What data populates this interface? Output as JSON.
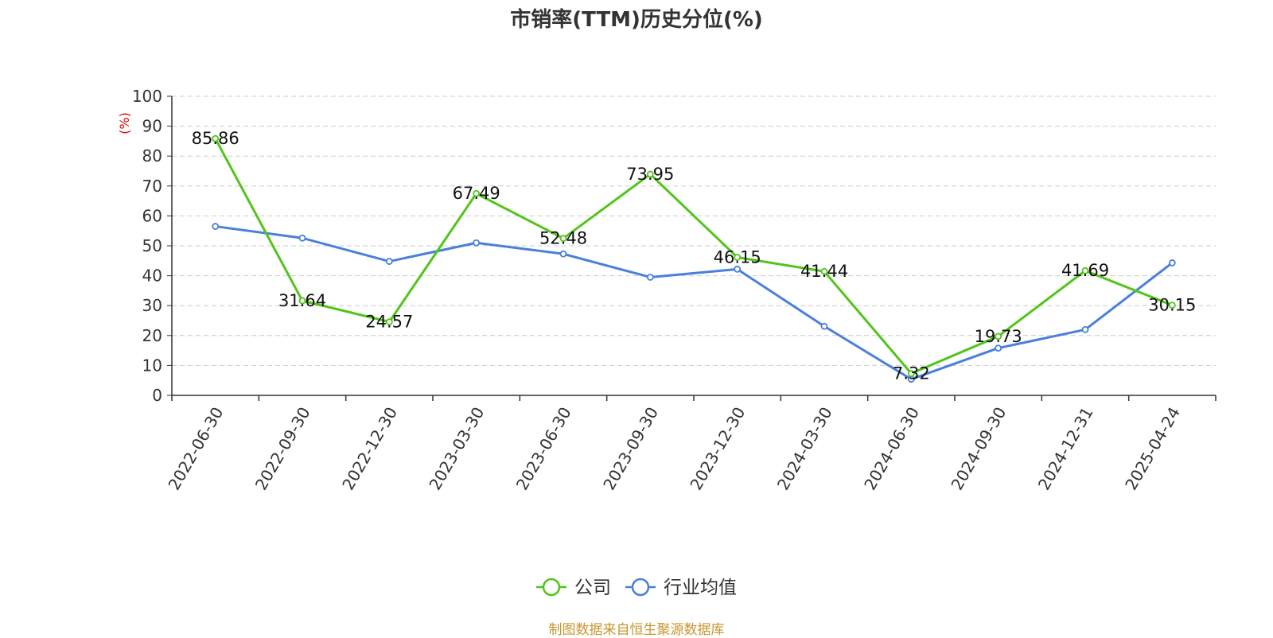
{
  "chart_data": {
    "type": "line",
    "title": "市销率(TTM)历史分位(%)",
    "ylabel": "(%)",
    "ylim": [
      0,
      100
    ],
    "yticks": [
      0,
      10,
      20,
      30,
      40,
      50,
      60,
      70,
      80,
      90,
      100
    ],
    "grid": true,
    "legend_position": "bottom",
    "x": [
      "2022-06-30",
      "2022-09-30",
      "2022-12-30",
      "2023-03-30",
      "2023-06-30",
      "2023-09-30",
      "2023-12-30",
      "2024-03-30",
      "2024-06-30",
      "2024-09-30",
      "2024-12-31",
      "2025-04-24"
    ],
    "series": [
      {
        "name": "公司",
        "color": "#52c41a",
        "values": [
          85.86,
          31.64,
          24.57,
          67.49,
          52.48,
          73.95,
          46.15,
          41.44,
          7.32,
          19.73,
          41.69,
          30.15
        ],
        "labels": [
          "85.86",
          "31.64",
          "24.57",
          "67.49",
          "52.48",
          "73.95",
          "46.15",
          "41.44",
          "7.32",
          "19.73",
          "41.69",
          "30.15"
        ]
      },
      {
        "name": "行业均值",
        "color": "#4a7fdc",
        "values": [
          56.5,
          52.6,
          44.8,
          51.0,
          47.3,
          39.5,
          42.2,
          23.1,
          5.4,
          15.8,
          22.0,
          44.3
        ]
      }
    ]
  },
  "source_text": "制图数据来自恒生聚源数据库",
  "source_color": "#c8962e",
  "ylabel_color": "#e60000",
  "axis_color": "#333333",
  "grid_color": "#cccccc"
}
